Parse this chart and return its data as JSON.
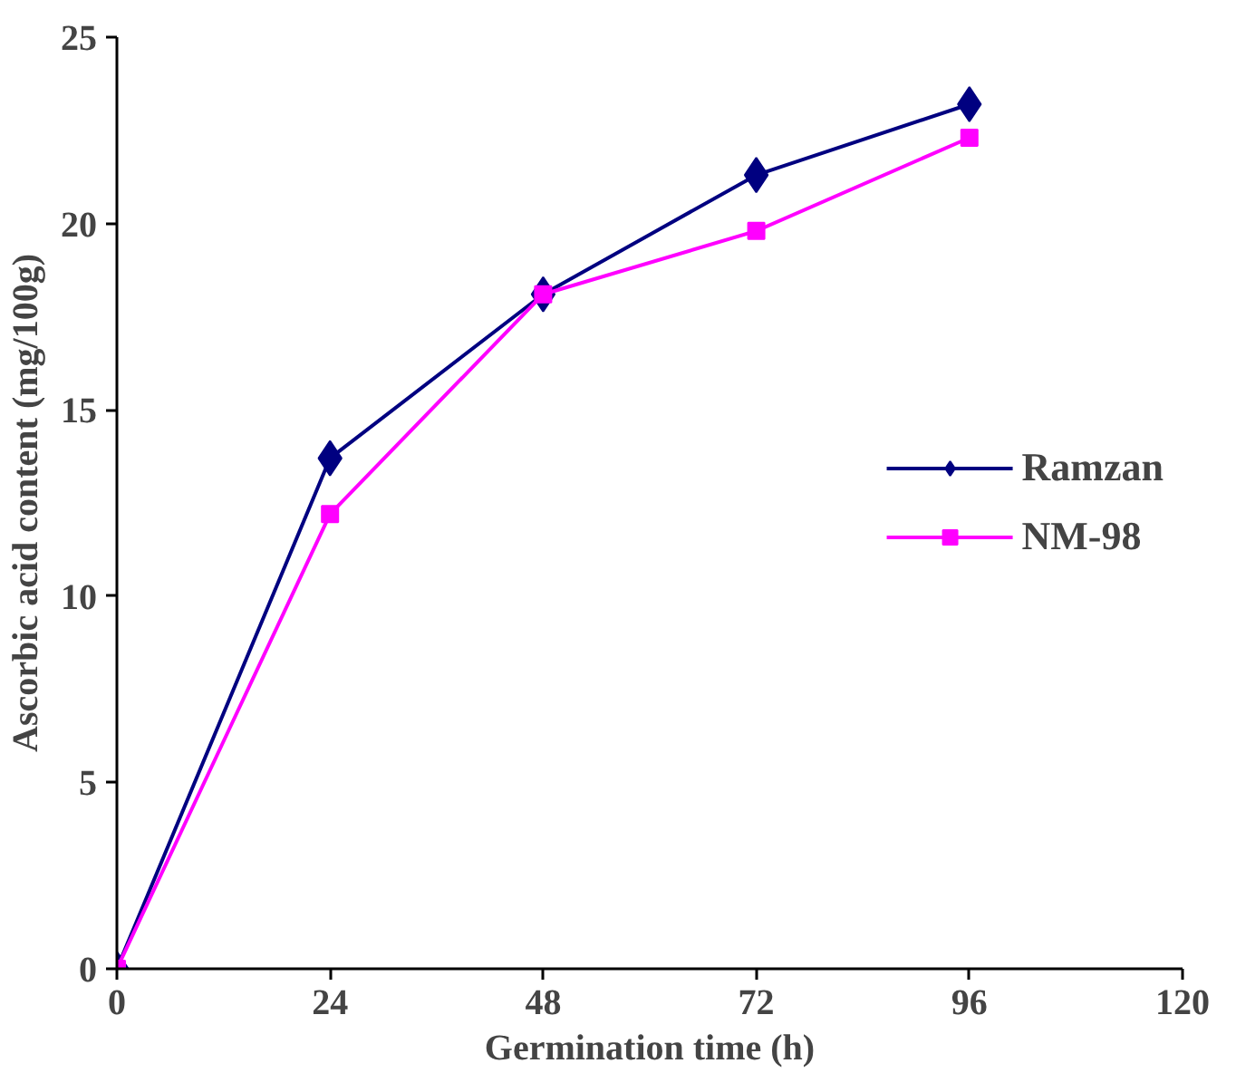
{
  "chart_data": {
    "type": "line",
    "xlabel": "Germination time (h)",
    "ylabel": "Ascorbic acid content (mg/100g)",
    "x": [
      0,
      24,
      48,
      72,
      96
    ],
    "series": [
      {
        "name": "Ramzan",
        "color": "#000080",
        "marker": "diamond",
        "values": [
          0,
          13.7,
          18.1,
          21.3,
          23.2
        ]
      },
      {
        "name": "NM-98",
        "color": "#ff00ff",
        "marker": "square",
        "values": [
          0,
          12.2,
          18.1,
          19.8,
          22.3
        ]
      }
    ],
    "xlim": [
      0,
      120
    ],
    "xticks": [
      0,
      24,
      48,
      72,
      96,
      120
    ],
    "ylim": [
      0,
      25
    ],
    "yticks": [
      0,
      5,
      10,
      15,
      20,
      25
    ],
    "grid": false,
    "legend": "right",
    "line_style": "solid"
  }
}
